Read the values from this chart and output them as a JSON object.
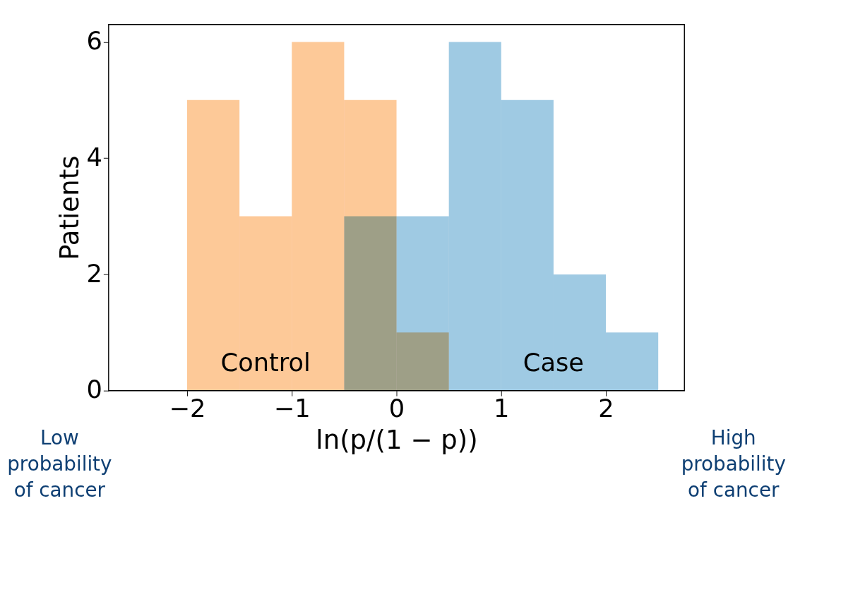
{
  "chart_data": {
    "type": "histogram",
    "xlabel": "ln(p/(1 − p))",
    "ylabel": "Patients",
    "series": [
      {
        "name": "Control",
        "color": "#fdc998",
        "values": [
          5,
          3,
          6,
          5,
          1,
          null,
          null,
          null,
          null
        ]
      },
      {
        "name": "Case",
        "color": "#9fcae3",
        "values": [
          null,
          null,
          null,
          3,
          3,
          6,
          5,
          2,
          1
        ]
      }
    ],
    "bins": [
      -2,
      -1.5,
      -1,
      -0.5,
      0,
      0.5,
      1,
      1.5,
      2,
      2.5
    ],
    "xlim": [
      -2.75,
      2.75
    ],
    "xticks": [
      {
        "value": -2,
        "label": "−2"
      },
      {
        "value": -1,
        "label": "−1"
      },
      0,
      1,
      2
    ],
    "ylim": [
      0,
      6.3
    ],
    "yticks": [
      0,
      2,
      4,
      6
    ],
    "grid": false,
    "annotations": [
      "Low\nprobability\nof cancer",
      "High\nprobability\nof cancer"
    ]
  }
}
